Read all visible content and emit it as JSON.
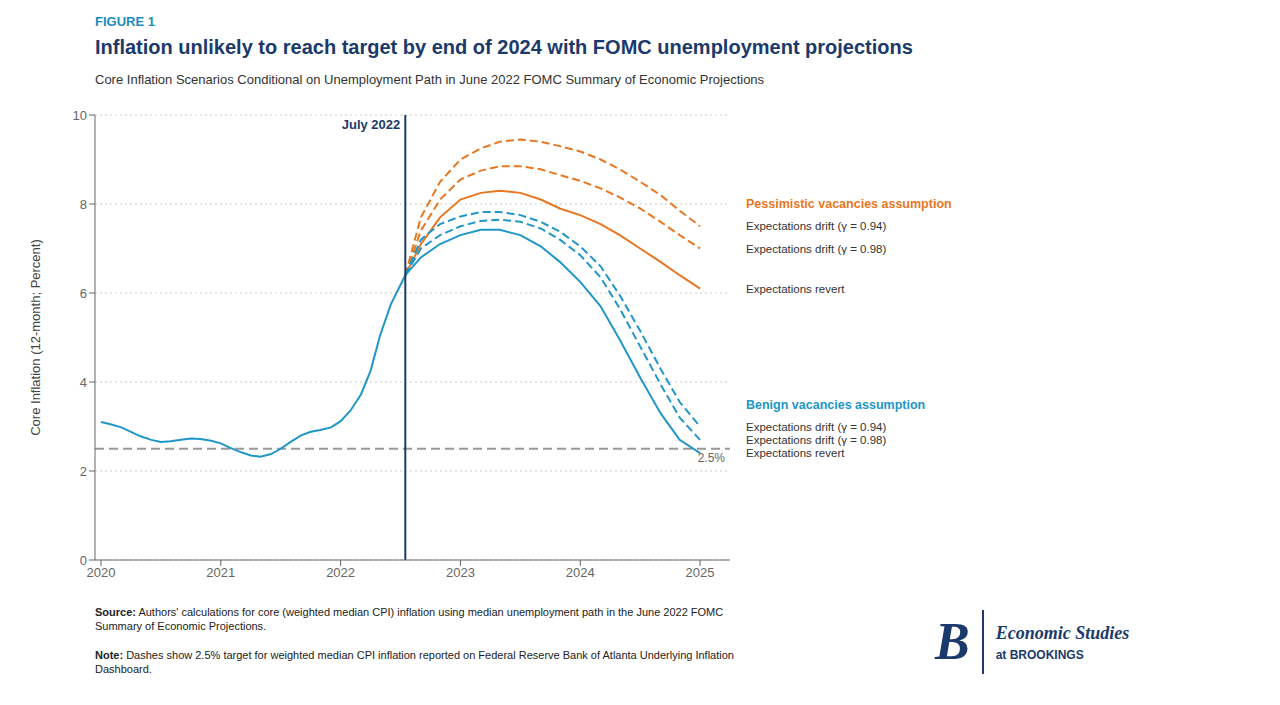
{
  "chart_data": {
    "type": "line",
    "figure_label": "FIGURE 1",
    "figure_label_color": "#1B8DBD",
    "title": "Inflation unlikely to reach target by end of 2024 with FOMC unemployment projections",
    "title_color": "#1B3A6B",
    "subtitle": "Core Inflation Scenarios Conditional on Unemployment Path in June 2022 FOMC Summary of Economic Projections",
    "subtitle_color": "#333333",
    "y_label": "Core Inflation (12-month; Percent)",
    "xlim": [
      2019.95,
      2025.25
    ],
    "xticks": [
      2020,
      2021,
      2022,
      2023,
      2024,
      2025
    ],
    "ylim": [
      0,
      10
    ],
    "yticks": [
      0,
      2,
      4,
      6,
      8,
      10
    ],
    "grid": "y",
    "series": [
      {
        "color": "#2196C8",
        "line_style": "solid",
        "x": [
          2020.0,
          2020.08,
          2020.17,
          2020.25,
          2020.33,
          2020.42,
          2020.5,
          2020.58,
          2020.67,
          2020.75,
          2020.83,
          2020.92,
          2021.0,
          2021.08,
          2021.17,
          2021.25,
          2021.33,
          2021.42,
          2021.5,
          2021.58,
          2021.67,
          2021.75,
          2021.83,
          2021.92,
          2022.0,
          2022.08,
          2022.17,
          2022.25,
          2022.33,
          2022.42,
          2022.54
        ],
        "values": [
          3.1,
          3.05,
          2.98,
          2.88,
          2.78,
          2.7,
          2.65,
          2.67,
          2.7,
          2.73,
          2.72,
          2.68,
          2.62,
          2.52,
          2.42,
          2.35,
          2.32,
          2.38,
          2.5,
          2.65,
          2.8,
          2.88,
          2.92,
          2.98,
          3.12,
          3.35,
          3.72,
          4.25,
          5.05,
          5.75,
          6.4
        ]
      },
      {
        "color": "#E87722",
        "line_style": "solid",
        "label": "Expectations revert",
        "group": "Pessimistic vacancies assumption",
        "x": [
          2022.54,
          2022.67,
          2022.83,
          2023.0,
          2023.17,
          2023.33,
          2023.5,
          2023.67,
          2023.83,
          2024.0,
          2024.17,
          2024.33,
          2024.5,
          2024.67,
          2024.83,
          2025.0
        ],
        "values": [
          6.4,
          7.1,
          7.7,
          8.1,
          8.25,
          8.3,
          8.25,
          8.1,
          7.9,
          7.75,
          7.55,
          7.3,
          7.0,
          6.7,
          6.4,
          6.1
        ]
      },
      {
        "color": "#E87722",
        "line_style": "dashed",
        "label": "Expectations drift (γ = 0.98)",
        "group": "Pessimistic vacancies assumption",
        "x": [
          2022.54,
          2022.67,
          2022.83,
          2023.0,
          2023.17,
          2023.33,
          2023.5,
          2023.67,
          2023.83,
          2024.0,
          2024.17,
          2024.33,
          2024.5,
          2024.67,
          2024.83,
          2025.0
        ],
        "values": [
          6.4,
          7.4,
          8.1,
          8.55,
          8.75,
          8.85,
          8.85,
          8.78,
          8.65,
          8.52,
          8.35,
          8.15,
          7.9,
          7.6,
          7.3,
          7.0
        ]
      },
      {
        "color": "#E87722",
        "line_style": "dashed",
        "label": "Expectations drift (γ = 0.94)",
        "group": "Pessimistic vacancies assumption",
        "x": [
          2022.54,
          2022.67,
          2022.83,
          2023.0,
          2023.17,
          2023.33,
          2023.5,
          2023.67,
          2023.83,
          2024.0,
          2024.17,
          2024.33,
          2024.5,
          2024.67,
          2024.83,
          2025.0
        ],
        "values": [
          6.4,
          7.7,
          8.5,
          9.0,
          9.25,
          9.4,
          9.45,
          9.4,
          9.3,
          9.18,
          9.0,
          8.78,
          8.5,
          8.2,
          7.85,
          7.5
        ]
      },
      {
        "color": "#2196C8",
        "line_style": "solid",
        "label": "Expectations revert",
        "group": "Benign vacancies assumption",
        "x": [
          2022.54,
          2022.67,
          2022.83,
          2023.0,
          2023.17,
          2023.33,
          2023.5,
          2023.67,
          2023.83,
          2024.0,
          2024.17,
          2024.33,
          2024.5,
          2024.67,
          2024.83,
          2025.0
        ],
        "values": [
          6.4,
          6.8,
          7.1,
          7.3,
          7.42,
          7.42,
          7.3,
          7.05,
          6.7,
          6.25,
          5.7,
          4.95,
          4.1,
          3.3,
          2.7,
          2.4
        ]
      },
      {
        "color": "#2196C8",
        "line_style": "dashed",
        "label": "Expectations drift (γ = 0.98)",
        "group": "Benign vacancies assumption",
        "x": [
          2022.54,
          2022.67,
          2022.83,
          2023.0,
          2023.17,
          2023.33,
          2023.5,
          2023.67,
          2023.83,
          2024.0,
          2024.17,
          2024.33,
          2024.5,
          2024.67,
          2024.83,
          2025.0
        ],
        "values": [
          6.4,
          7.0,
          7.3,
          7.5,
          7.62,
          7.65,
          7.6,
          7.45,
          7.2,
          6.85,
          6.35,
          5.65,
          4.8,
          3.95,
          3.2,
          2.7
        ]
      },
      {
        "color": "#2196C8",
        "line_style": "dashed",
        "label": "Expectations drift (γ = 0.94)",
        "group": "Benign vacancies assumption",
        "x": [
          2022.54,
          2022.67,
          2022.83,
          2023.0,
          2023.17,
          2023.33,
          2023.5,
          2023.67,
          2023.83,
          2024.0,
          2024.17,
          2024.33,
          2024.5,
          2024.67,
          2024.83,
          2025.0
        ],
        "values": [
          6.4,
          7.2,
          7.55,
          7.72,
          7.82,
          7.82,
          7.75,
          7.6,
          7.38,
          7.05,
          6.6,
          5.95,
          5.15,
          4.3,
          3.55,
          3.0
        ]
      }
    ],
    "vline": {
      "x": 2022.54,
      "label": "July 2022",
      "color": "#1B3A6B"
    },
    "hline": {
      "y": 2.5,
      "label": "2.5%",
      "color": "#999999"
    },
    "source": {
      "bold": "Source:",
      "text": " Authors' calculations for core (weighted median CPI) inflation using median unemployment path in the June 2022 FOMC\nSummary of Economic Projections."
    },
    "note": {
      "bold": "Note:",
      "text": " Dashes show 2.5% target for weighted median CPI inflation reported on Federal Reserve Bank of Atlanta Underlying Inflation\nDashboard."
    },
    "logo": {
      "mark": "B",
      "name": "Economic Studies",
      "sub": "at BROOKINGS",
      "color": "#1B3A6B"
    }
  }
}
